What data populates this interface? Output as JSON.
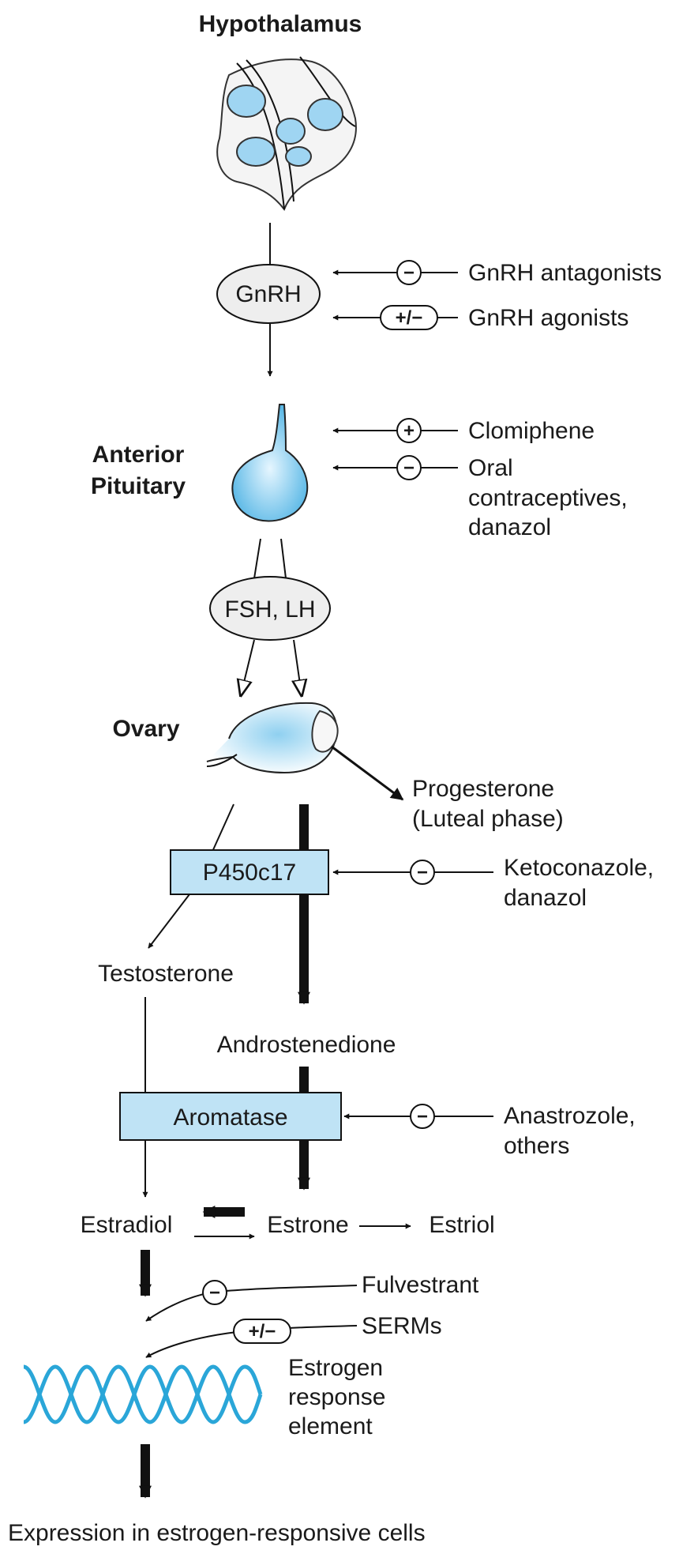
{
  "nodes": {
    "hypothalamus": "Hypothalamus",
    "gnrh": "GnRH",
    "anterior_pituitary": [
      "Anterior",
      "Pituitary"
    ],
    "fsh_lh": "FSH, LH",
    "ovary": "Ovary",
    "progesterone": [
      "Progesterone",
      "(Luteal phase)"
    ],
    "p450c17": "P450c17",
    "testosterone": "Testosterone",
    "androstenedione": "Androstenedione",
    "aromatase": "Aromatase",
    "estradiol": "Estradiol",
    "estrone": "Estrone",
    "estriol": "Estriol",
    "ere": [
      "Estrogen",
      "response",
      "element"
    ],
    "expression": "Expression in estrogen-responsive cells"
  },
  "drugs": {
    "gnrh_antagonists": {
      "label": [
        "GnRH antagonists"
      ],
      "effect": "−"
    },
    "gnrh_agonists": {
      "label": [
        "GnRH agonists"
      ],
      "effect": "+/−"
    },
    "clomiphene": {
      "label": [
        "Clomiphene"
      ],
      "effect": "+"
    },
    "oral_contraceptives": {
      "label": [
        "Oral",
        "contraceptives,",
        "danazol"
      ],
      "effect": "−"
    },
    "ketoconazole": {
      "label": [
        "Ketoconazole,",
        "danazol"
      ],
      "effect": "−"
    },
    "anastrozole": {
      "label": [
        "Anastrozole,",
        "others"
      ],
      "effect": "−"
    },
    "fulvestrant": {
      "label": [
        "Fulvestrant"
      ],
      "effect": "−"
    },
    "serms": {
      "label": [
        "SERMs"
      ],
      "effect": "+/−"
    }
  },
  "colors": {
    "accent_fill": "#bfe3f5",
    "gland_fill": "#7cc8ec",
    "dna": "#2aa6d8",
    "ellipse_fill": "#eeeeee",
    "stroke": "#111111"
  }
}
